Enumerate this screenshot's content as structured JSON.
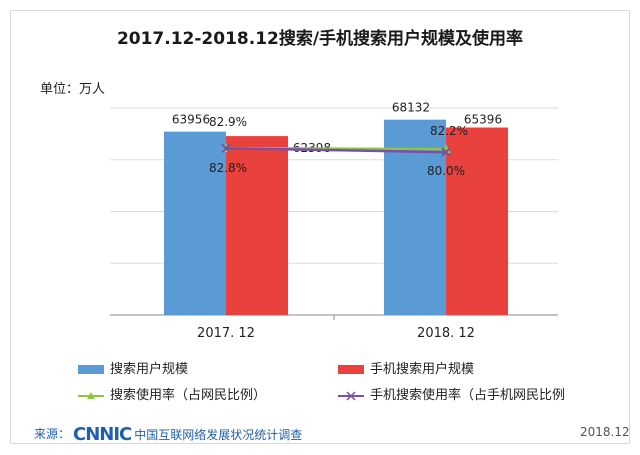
{
  "chart_data": {
    "type": "bar",
    "title": "2017.12-2018.12搜索/手机搜索用户规模及使用率",
    "unit_label": "单位：万人",
    "categories": [
      "2017. 12",
      "2018. 12"
    ],
    "series": [
      {
        "name": "搜索用户规模",
        "kind": "bar",
        "values": [
          63956,
          68132
        ],
        "color": "#5b9bd5"
      },
      {
        "name": "手机搜索用户规模",
        "kind": "bar",
        "values": [
          62398,
          65396
        ],
        "color": "#e8413e"
      },
      {
        "name": "搜索使用率（占网民比例）",
        "kind": "line",
        "values": [
          "82.9%",
          "82.2%"
        ],
        "color": "#8dc63f"
      },
      {
        "name": "手机搜索使用率（占手机网民比例",
        "kind": "line",
        "values": [
          "82.8%",
          "80.0%"
        ],
        "color": "#7b4fa8"
      }
    ],
    "grid": true,
    "legend_position": "bottom"
  },
  "source": {
    "prefix": "来源：",
    "logo_text": "CNNIC",
    "org_text": "中国互联网络发展状况统计调查",
    "year": "2018.12"
  },
  "icons": {
    "line_marker_1": "triangle-marker-icon",
    "line_marker_2": "x-marker-icon"
  }
}
